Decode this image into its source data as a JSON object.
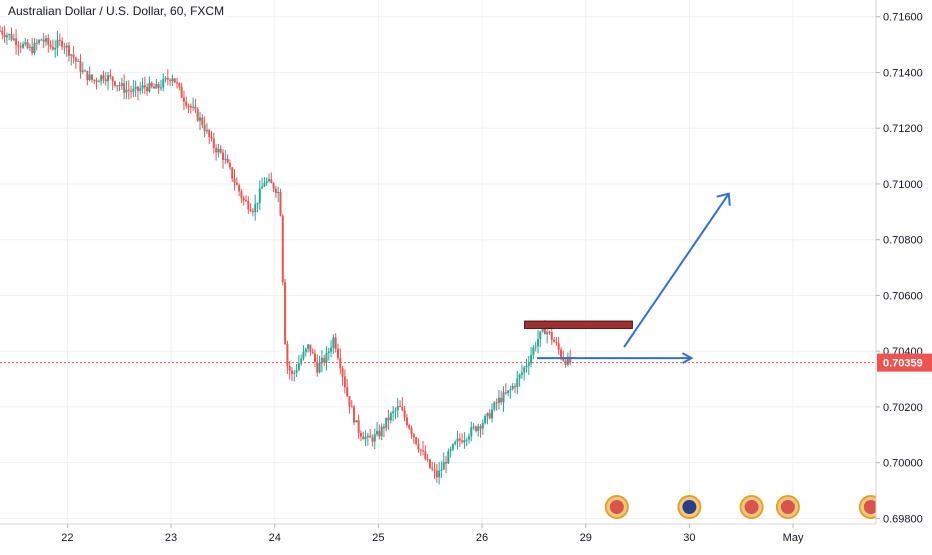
{
  "chart_data": {
    "type": "candlestick",
    "title": "Australian Dollar / U.S. Dollar, 60, FXCM",
    "ylim": [
      0.6978,
      0.7166
    ],
    "y_ticks": [
      "0.71600",
      "0.71400",
      "0.71200",
      "0.71000",
      "0.70800",
      "0.70600",
      "0.70400",
      "0.70200",
      "0.70000",
      "0.69800"
    ],
    "x_ticks": [
      {
        "label": "22",
        "x": 1.55
      },
      {
        "label": "23",
        "x": 2.55
      },
      {
        "label": "24",
        "x": 3.55
      },
      {
        "label": "25",
        "x": 4.55
      },
      {
        "label": "26",
        "x": 5.55
      },
      {
        "label": "29",
        "x": 6.55
      },
      {
        "label": "30",
        "x": 7.55
      },
      {
        "label": "May",
        "x": 8.55
      }
    ],
    "x_range": [
      0.9,
      9.35
    ],
    "last_price": "0.70359",
    "last_price_value": 0.70359,
    "grid": true,
    "colors": {
      "up": "#26a69a",
      "down": "#ef5350",
      "accent": "#2962ff",
      "last_price": "#ef5350",
      "annotation": "#2f6fd6",
      "zone": "#a0302f"
    },
    "price_path": [
      {
        "x": 0.9,
        "y": 0.7155
      },
      {
        "x": 1.0,
        "y": 0.7153
      },
      {
        "x": 1.1,
        "y": 0.715
      },
      {
        "x": 1.2,
        "y": 0.7148
      },
      {
        "x": 1.3,
        "y": 0.7152
      },
      {
        "x": 1.4,
        "y": 0.7149
      },
      {
        "x": 1.5,
        "y": 0.7151
      },
      {
        "x": 1.6,
        "y": 0.7146
      },
      {
        "x": 1.7,
        "y": 0.714
      },
      {
        "x": 1.8,
        "y": 0.7137
      },
      {
        "x": 1.9,
        "y": 0.7139
      },
      {
        "x": 2.0,
        "y": 0.7137
      },
      {
        "x": 2.1,
        "y": 0.7134
      },
      {
        "x": 2.2,
        "y": 0.7133
      },
      {
        "x": 2.3,
        "y": 0.7135
      },
      {
        "x": 2.4,
        "y": 0.7134
      },
      {
        "x": 2.5,
        "y": 0.7137
      },
      {
        "x": 2.56,
        "y": 0.7139
      },
      {
        "x": 2.65,
        "y": 0.7132
      },
      {
        "x": 2.75,
        "y": 0.7127
      },
      {
        "x": 2.85,
        "y": 0.7122
      },
      {
        "x": 2.95,
        "y": 0.7114
      },
      {
        "x": 3.05,
        "y": 0.711
      },
      {
        "x": 3.15,
        "y": 0.7102
      },
      {
        "x": 3.25,
        "y": 0.7094
      },
      {
        "x": 3.35,
        "y": 0.7091
      },
      {
        "x": 3.45,
        "y": 0.7101
      },
      {
        "x": 3.55,
        "y": 0.7099
      },
      {
        "x": 3.6,
        "y": 0.7096
      },
      {
        "x": 3.62,
        "y": 0.7075
      },
      {
        "x": 3.64,
        "y": 0.7052
      },
      {
        "x": 3.66,
        "y": 0.7036
      },
      {
        "x": 3.72,
        "y": 0.7031
      },
      {
        "x": 3.8,
        "y": 0.7037
      },
      {
        "x": 3.88,
        "y": 0.7042
      },
      {
        "x": 3.96,
        "y": 0.7034
      },
      {
        "x": 4.05,
        "y": 0.7038
      },
      {
        "x": 4.12,
        "y": 0.7045
      },
      {
        "x": 4.18,
        "y": 0.7036
      },
      {
        "x": 4.25,
        "y": 0.7024
      },
      {
        "x": 4.35,
        "y": 0.7012
      },
      {
        "x": 4.45,
        "y": 0.7008
      },
      {
        "x": 4.55,
        "y": 0.701
      },
      {
        "x": 4.65,
        "y": 0.7016
      },
      {
        "x": 4.75,
        "y": 0.702
      },
      {
        "x": 4.85,
        "y": 0.7013
      },
      {
        "x": 4.95,
        "y": 0.7005
      },
      {
        "x": 5.05,
        "y": 0.6998
      },
      {
        "x": 5.12,
        "y": 0.6995
      },
      {
        "x": 5.2,
        "y": 0.7001
      },
      {
        "x": 5.3,
        "y": 0.7007
      },
      {
        "x": 5.4,
        "y": 0.701
      },
      {
        "x": 5.5,
        "y": 0.7013
      },
      {
        "x": 5.6,
        "y": 0.7016
      },
      {
        "x": 5.7,
        "y": 0.7022
      },
      {
        "x": 5.8,
        "y": 0.7025
      },
      {
        "x": 5.9,
        "y": 0.703
      },
      {
        "x": 6.0,
        "y": 0.7037
      },
      {
        "x": 6.08,
        "y": 0.7044
      },
      {
        "x": 6.16,
        "y": 0.7048
      },
      {
        "x": 6.22,
        "y": 0.7045
      },
      {
        "x": 6.28,
        "y": 0.7041
      },
      {
        "x": 6.34,
        "y": 0.7037
      },
      {
        "x": 6.4,
        "y": 0.7036
      }
    ],
    "seed": 7
  }
}
